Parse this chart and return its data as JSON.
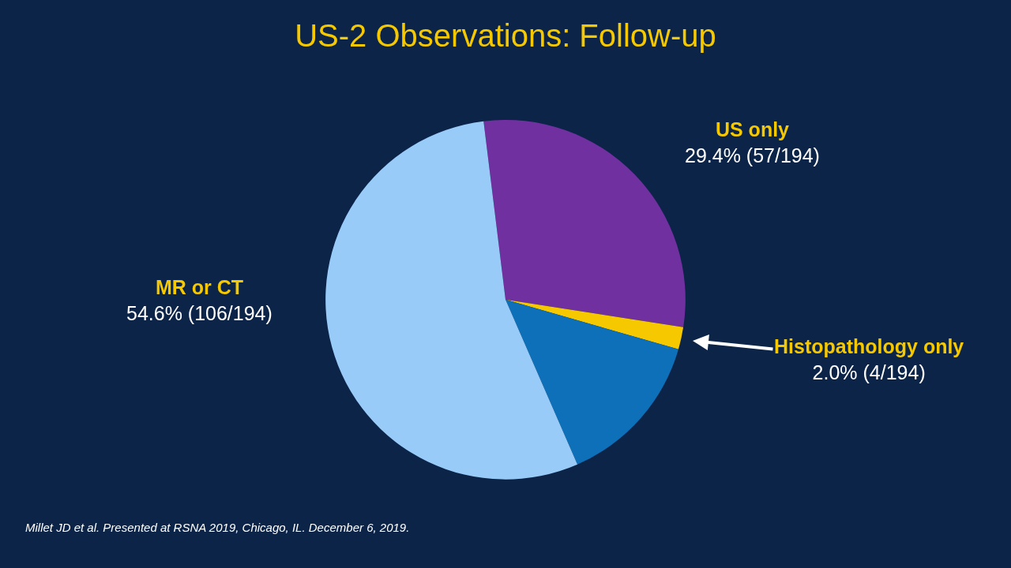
{
  "chart_data": {
    "type": "pie",
    "title": "US-2 Observations: Follow-up",
    "categories": [
      "US only",
      "Histopathology only",
      null,
      "MR or CT"
    ],
    "values": [
      29.4,
      2.0,
      14.0,
      54.6
    ],
    "value_labels": [
      "29.4% (57/194)",
      "2.0% (4/194)",
      null,
      "54.6% (106/194)"
    ],
    "colors": [
      "#7030a0",
      "#f5c800",
      "#0e70b8",
      "#99cbf8"
    ],
    "legend": false,
    "annotations": [
      "Millet JD et al. Presented at RSNA 2019, Chicago, IL. December 6, 2019."
    ]
  }
}
